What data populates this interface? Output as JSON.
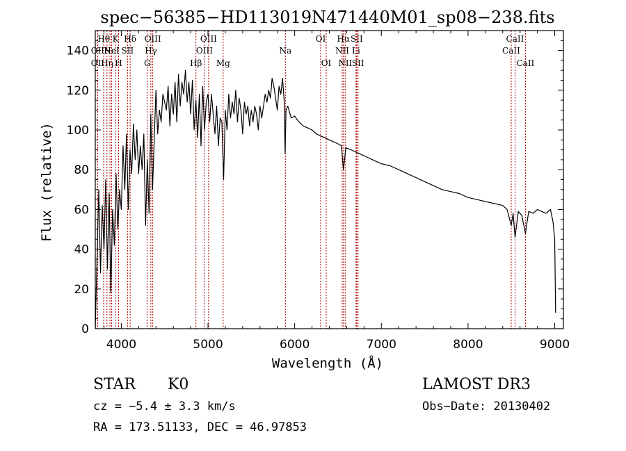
{
  "chart_data": {
    "type": "line",
    "title": "spec−56385−HD113019N471440M01_sp08−238.fits",
    "xlabel": "Wavelength (Å)",
    "ylabel": "Flux (relative)",
    "xlim": [
      3700,
      9100
    ],
    "ylim": [
      0,
      150
    ],
    "xticks": [
      4000,
      5000,
      6000,
      7000,
      8000,
      9000
    ],
    "yticks": [
      0,
      20,
      40,
      60,
      80,
      100,
      120,
      140
    ],
    "grid": false,
    "line_color": "#000000",
    "marker_color": "#b00000",
    "series": [
      {
        "name": "flux",
        "x": [
          3700,
          3720,
          3740,
          3760,
          3780,
          3800,
          3820,
          3840,
          3860,
          3880,
          3900,
          3920,
          3940,
          3960,
          3980,
          4000,
          4020,
          4040,
          4060,
          4080,
          4100,
          4120,
          4140,
          4160,
          4180,
          4200,
          4220,
          4240,
          4260,
          4280,
          4300,
          4320,
          4340,
          4360,
          4380,
          4400,
          4420,
          4440,
          4460,
          4480,
          4500,
          4520,
          4540,
          4560,
          4580,
          4600,
          4620,
          4640,
          4660,
          4680,
          4700,
          4720,
          4740,
          4760,
          4780,
          4800,
          4820,
          4840,
          4860,
          4880,
          4900,
          4920,
          4940,
          4960,
          4980,
          5000,
          5020,
          5040,
          5060,
          5080,
          5100,
          5120,
          5140,
          5160,
          5180,
          5200,
          5220,
          5240,
          5260,
          5280,
          5300,
          5320,
          5340,
          5360,
          5380,
          5400,
          5420,
          5440,
          5460,
          5480,
          5500,
          5520,
          5540,
          5560,
          5580,
          5600,
          5620,
          5640,
          5660,
          5680,
          5700,
          5720,
          5740,
          5760,
          5780,
          5800,
          5820,
          5840,
          5860,
          5880,
          5890,
          5900,
          5920,
          5960,
          6000,
          6050,
          6100,
          6150,
          6200,
          6250,
          6300,
          6350,
          6400,
          6450,
          6500,
          6540,
          6563,
          6590,
          6650,
          6700,
          6750,
          6800,
          6850,
          6900,
          6950,
          7000,
          7100,
          7200,
          7300,
          7400,
          7500,
          7600,
          7700,
          7800,
          7900,
          8000,
          8100,
          8200,
          8300,
          8400,
          8450,
          8498,
          8520,
          8542,
          8580,
          8620,
          8662,
          8700,
          8750,
          8800,
          8850,
          8900,
          8950,
          8980,
          9000,
          9010
        ],
        "y": [
          0,
          35,
          70,
          28,
          62,
          40,
          75,
          30,
          68,
          18,
          60,
          42,
          78,
          50,
          70,
          60,
          92,
          70,
          98,
          60,
          90,
          78,
          103,
          85,
          100,
          78,
          92,
          80,
          98,
          52,
          85,
          58,
          108,
          70,
          95,
          120,
          98,
          110,
          104,
          118,
          114,
          110,
          122,
          102,
          118,
          108,
          124,
          104,
          128,
          112,
          124,
          118,
          130,
          114,
          124,
          108,
          125,
          100,
          115,
          96,
          118,
          92,
          122,
          100,
          114,
          118,
          104,
          118,
          108,
          98,
          112,
          92,
          106,
          104,
          75,
          110,
          100,
          118,
          106,
          114,
          108,
          120,
          104,
          116,
          110,
          98,
          114,
          108,
          112,
          102,
          110,
          104,
          112,
          108,
          100,
          112,
          106,
          112,
          118,
          114,
          120,
          116,
          126,
          122,
          116,
          110,
          122,
          118,
          126,
          114,
          88,
          110,
          112,
          106,
          107,
          104,
          102,
          101,
          100,
          98,
          97,
          96,
          95,
          94,
          93,
          92,
          80,
          91,
          90,
          89,
          88,
          87,
          86,
          85,
          84,
          83,
          82,
          80,
          78,
          76,
          74,
          72,
          70,
          69,
          68,
          66,
          65,
          64,
          63,
          62,
          60,
          52,
          58,
          46,
          59,
          57,
          48,
          59,
          58,
          60,
          59,
          58,
          60,
          54,
          45,
          8
        ]
      }
    ],
    "line_markers": [
      {
        "x": 3727,
        "row": 1,
        "label": "OII"
      },
      {
        "x": 3727,
        "row": 2,
        "label": "OII"
      },
      {
        "x": 3797,
        "row": 0,
        "label": "Hθ"
      },
      {
        "x": 3835,
        "row": 2,
        "label": "Hη"
      },
      {
        "x": 3869,
        "row": 1,
        "label": "Ne"
      },
      {
        "x": 3934,
        "row": 0,
        "label": "K"
      },
      {
        "x": 3969,
        "row": 2,
        "label": "H"
      },
      {
        "x": 3889,
        "row": 1,
        "label": "HeI"
      },
      {
        "x": 4072,
        "row": 1,
        "label": "SII"
      },
      {
        "x": 4102,
        "row": 0,
        "label": "Hδ"
      },
      {
        "x": 4300,
        "row": 2,
        "label": "G"
      },
      {
        "x": 4341,
        "row": 1,
        "label": "Hγ"
      },
      {
        "x": 4363,
        "row": 0,
        "label": "OIII"
      },
      {
        "x": 4861,
        "row": 2,
        "label": "Hβ"
      },
      {
        "x": 4959,
        "row": 1,
        "label": "OIII"
      },
      {
        "x": 5007,
        "row": 0,
        "label": "OIII"
      },
      {
        "x": 5175,
        "row": 2,
        "label": "Mg"
      },
      {
        "x": 5893,
        "row": 1,
        "label": "Na"
      },
      {
        "x": 6300,
        "row": 0,
        "label": "OI"
      },
      {
        "x": 6364,
        "row": 2,
        "label": "OI"
      },
      {
        "x": 6548,
        "row": 1,
        "label": "NII"
      },
      {
        "x": 6563,
        "row": 0,
        "label": "Hα"
      },
      {
        "x": 6583,
        "row": 2,
        "label": "NII"
      },
      {
        "x": 6708,
        "row": 1,
        "label": "Li"
      },
      {
        "x": 6716,
        "row": 0,
        "label": "SII"
      },
      {
        "x": 6731,
        "row": 2,
        "label": "SII"
      },
      {
        "x": 8498,
        "row": 1,
        "label": "CaII"
      },
      {
        "x": 8542,
        "row": 0,
        "label": "CaII"
      },
      {
        "x": 8662,
        "row": 2,
        "label": "CaII"
      }
    ]
  },
  "info": {
    "class": "STAR",
    "subclass": "K0",
    "survey": "LAMOST DR3",
    "cz": "cz = −5.4 ± 3.3 km/s",
    "obs_date": "Obs−Date: 20130402",
    "coords": "RA = 173.51133, DEC =  46.97853"
  }
}
